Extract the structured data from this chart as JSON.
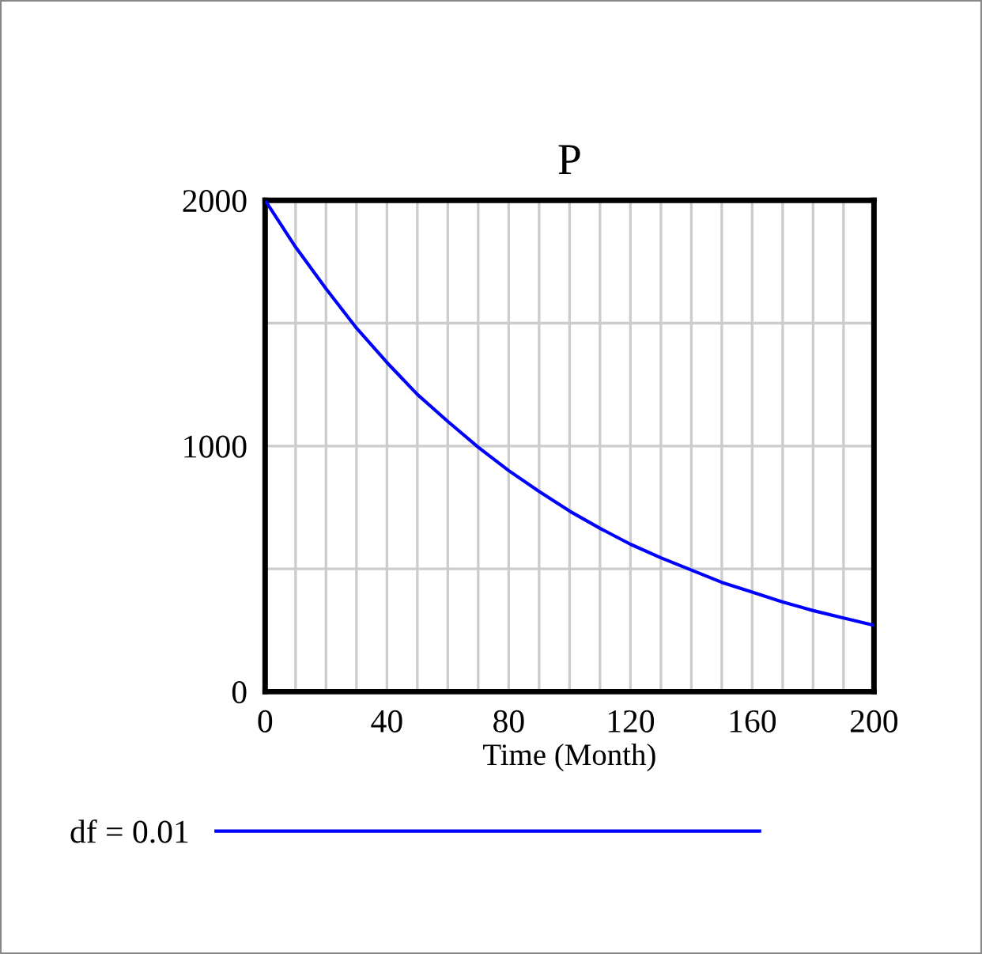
{
  "chart_data": {
    "type": "line",
    "title": "P",
    "xlabel": "Time (Month)",
    "x": [
      0,
      10,
      20,
      30,
      40,
      50,
      60,
      70,
      80,
      90,
      100,
      110,
      120,
      130,
      140,
      150,
      160,
      170,
      180,
      190,
      200
    ],
    "series": [
      {
        "name": "df = 0.01",
        "color": "#0000ff",
        "values": [
          2000,
          1810,
          1640,
          1480,
          1340,
          1210,
          1100,
          995,
          900,
          815,
          735,
          665,
          600,
          545,
          495,
          445,
          405,
          365,
          330,
          300,
          270
        ]
      }
    ],
    "xlim": [
      0,
      200
    ],
    "xticks": [
      0,
      {
        "value": 10,
        "label": null
      },
      {
        "value": 20,
        "label": null
      },
      {
        "value": 30,
        "label": null
      },
      40,
      {
        "value": 50,
        "label": null
      },
      {
        "value": 60,
        "label": null
      },
      {
        "value": 70,
        "label": null
      },
      80,
      {
        "value": 90,
        "label": null
      },
      {
        "value": 100,
        "label": null
      },
      {
        "value": 110,
        "label": null
      },
      120,
      {
        "value": 130,
        "label": null
      },
      {
        "value": 140,
        "label": null
      },
      {
        "value": 150,
        "label": null
      },
      160,
      {
        "value": 170,
        "label": null
      },
      {
        "value": 180,
        "label": null
      },
      {
        "value": 190,
        "label": null
      },
      200
    ],
    "ylim": [
      0,
      2000
    ],
    "yticks": [
      0,
      {
        "value": 500,
        "label": null
      },
      1000,
      {
        "value": 1500,
        "label": null
      },
      2000
    ],
    "grid": true,
    "legend": "bottom",
    "marker": "none",
    "line_style": "solid"
  }
}
